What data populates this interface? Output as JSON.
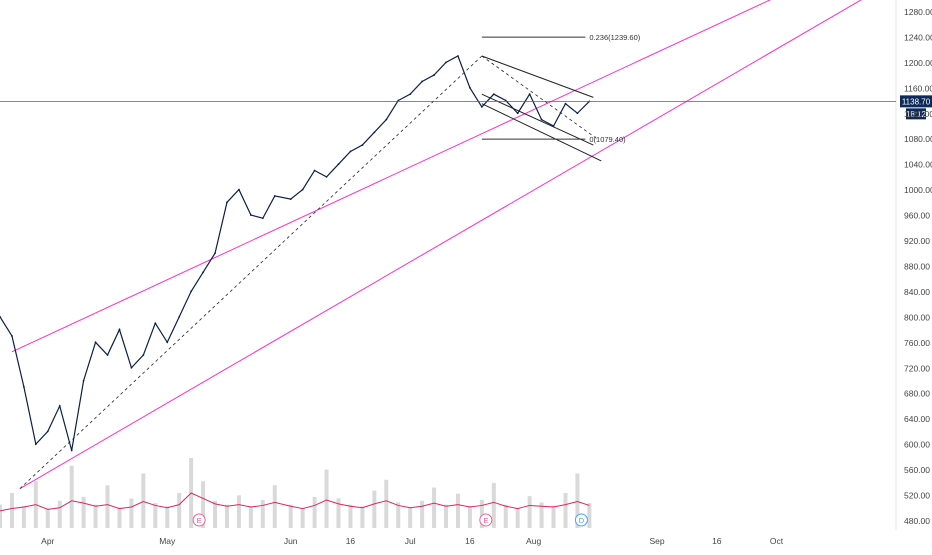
{
  "colors": {
    "background": "#ffffff",
    "price_line": "#0b1f4a",
    "channel": "#ff2bd6",
    "current_price_line": "#2b6cb0",
    "price_label_bg": "#0e2a5a",
    "volume_bar": "#d9d9d9",
    "volume_avg": "#e0245e",
    "axis_text": "#444444",
    "fib_line": "#333333",
    "wedge_line": "#222222",
    "earnings_marker": "#f06292",
    "dividend_marker": "#42a5f5"
  },
  "chart_data": {
    "type": "line",
    "title": "",
    "xlabel": "",
    "ylabel": "",
    "x_tick_labels": [
      "Apr",
      "May",
      "Jun",
      "16",
      "Jul",
      "16",
      "Aug",
      "Sep",
      "16",
      "Oct"
    ],
    "x_tick_dates": [
      "2021-04-01",
      "2021-05-01",
      "2021-06-01",
      "2021-06-16",
      "2021-07-01",
      "2021-07-16",
      "2021-08-01",
      "2021-09-01",
      "2021-09-16",
      "2021-10-01"
    ],
    "y_ticks": [
      480,
      520,
      560,
      600,
      640,
      680,
      720,
      760,
      800,
      840,
      880,
      920,
      960,
      1000,
      1040,
      1080,
      1120,
      1160,
      1200,
      1240,
      1280
    ],
    "y_tick_labels": [
      "480.00",
      "520.00",
      "560.00",
      "600.00",
      "640.00",
      "680.00",
      "720.00",
      "760.00",
      "800.00",
      "840.00",
      "880.00",
      "920.00",
      "960.00",
      "1000.00",
      "1040.00",
      "1080.00",
      "1120.00",
      "1160.00",
      "1200.00",
      "1240.00",
      "1280.00"
    ],
    "ylim": [
      465,
      1298
    ],
    "xlim": [
      "2021-03-20",
      "2021-10-31"
    ],
    "current_price": 1138.7,
    "current_price_label": "1138.70",
    "countdown_label": "18:12",
    "series": [
      {
        "x": [
          "2021-03-20",
          "2021-03-23",
          "2021-03-26",
          "2021-03-29",
          "2021-04-01",
          "2021-04-04",
          "2021-04-07",
          "2021-04-10",
          "2021-04-13",
          "2021-04-16",
          "2021-04-19",
          "2021-04-22",
          "2021-04-25",
          "2021-04-28",
          "2021-05-01",
          "2021-05-04",
          "2021-05-07",
          "2021-05-10",
          "2021-05-13",
          "2021-05-16",
          "2021-05-19",
          "2021-05-22",
          "2021-05-25",
          "2021-05-28",
          "2021-06-01",
          "2021-06-04",
          "2021-06-07",
          "2021-06-10",
          "2021-06-13",
          "2021-06-16",
          "2021-06-19",
          "2021-06-22",
          "2021-06-25",
          "2021-06-28",
          "2021-07-01",
          "2021-07-04",
          "2021-07-07",
          "2021-07-10",
          "2021-07-13",
          "2021-07-16",
          "2021-07-19",
          "2021-07-22",
          "2021-07-25",
          "2021-07-28",
          "2021-07-31",
          "2021-08-03",
          "2021-08-06",
          "2021-08-09",
          "2021-08-12",
          "2021-08-15"
        ],
        "values": [
          800,
          770,
          690,
          600,
          620,
          660,
          590,
          700,
          760,
          740,
          780,
          720,
          740,
          790,
          760,
          800,
          840,
          870,
          900,
          980,
          1000,
          960,
          955,
          990,
          985,
          1000,
          1030,
          1020,
          1040,
          1060,
          1070,
          1090,
          1110,
          1140,
          1150,
          1170,
          1180,
          1200,
          1210,
          1160,
          1130,
          1150,
          1140,
          1120,
          1150,
          1110,
          1100,
          1135,
          1120,
          1138.7
        ]
      }
    ],
    "fib_levels": [
      {
        "label": "0.236(1239.60)",
        "value": 1239.6
      },
      {
        "label": "0(1079.40)",
        "value": 1079.4
      }
    ],
    "volume": {
      "values": [
        30,
        45,
        28,
        60,
        25,
        35,
        80,
        40,
        30,
        55,
        26,
        38,
        70,
        32,
        28,
        45,
        90,
        60,
        35,
        30,
        42,
        28,
        36,
        55,
        30,
        25,
        40,
        75,
        38,
        30,
        28,
        48,
        62,
        33,
        27,
        35,
        52,
        30,
        44,
        28,
        36,
        58,
        30,
        26,
        41,
        33,
        29,
        45,
        70,
        32
      ],
      "moving_average": [
        22,
        25,
        27,
        30,
        24,
        26,
        35,
        32,
        28,
        30,
        25,
        27,
        34,
        29,
        26,
        30,
        45,
        38,
        31,
        28,
        30,
        27,
        29,
        33,
        28,
        25,
        29,
        36,
        31,
        28,
        26,
        31,
        35,
        29,
        26,
        28,
        32,
        28,
        30,
        27,
        29,
        33,
        28,
        25,
        29,
        28,
        27,
        30,
        34,
        29
      ]
    },
    "event_markers": [
      {
        "label": "E",
        "date": "2021-05-09"
      },
      {
        "label": "E",
        "date": "2021-07-20"
      },
      {
        "label": "D",
        "date": "2021-08-13"
      }
    ],
    "grid": false,
    "legend": "none"
  }
}
